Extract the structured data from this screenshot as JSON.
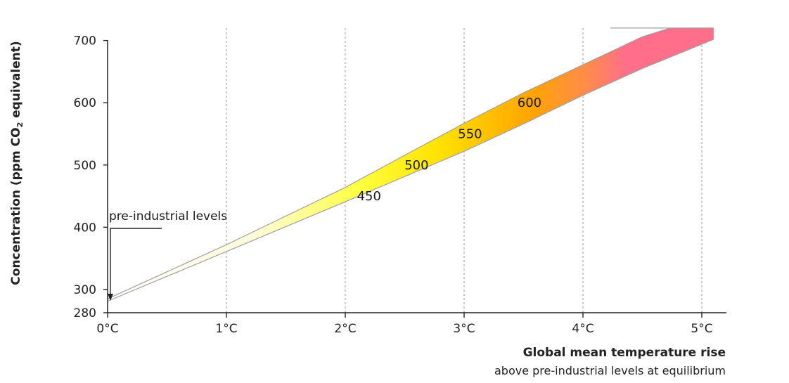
{
  "chart_data": {
    "type": "area",
    "title": "",
    "xlabel": "Global mean temperature rise",
    "xlabel_sub": "above pre-industrial levels at equilibrium",
    "ylabel": "Concentration (ppm CO",
    "ylabel_sub": "2",
    "ylabel_end": " equivalent)",
    "x_ticks": [
      {
        "value": 0,
        "label": "0°C"
      },
      {
        "value": 1,
        "label": "1°C"
      },
      {
        "value": 2,
        "label": "2°C"
      },
      {
        "value": 3,
        "label": "3°C"
      },
      {
        "value": 4,
        "label": "4°C"
      },
      {
        "value": 5,
        "label": "5°C"
      }
    ],
    "y_ticks": [
      280,
      300,
      400,
      500,
      600,
      700
    ],
    "xlim": [
      0,
      5.2
    ],
    "ylim": [
      280,
      720
    ],
    "grid": "vertical dashed lines at each degree",
    "band": {
      "upper": [
        [
          0,
          292
        ],
        [
          1,
          372
        ],
        [
          2,
          464
        ],
        [
          2.6,
          526
        ],
        [
          3,
          567
        ],
        [
          3.5,
          616
        ],
        [
          4,
          661
        ],
        [
          4.5,
          706
        ],
        [
          5.1,
          742
        ]
      ],
      "lower": [
        [
          0,
          290
        ],
        [
          1,
          361
        ],
        [
          2,
          441
        ],
        [
          3,
          522
        ],
        [
          3.5,
          566
        ],
        [
          4,
          612
        ],
        [
          4.5,
          655
        ],
        [
          5,
          694
        ],
        [
          5.1,
          702
        ]
      ],
      "cutoff_y": 720
    },
    "band_labels": [
      {
        "label": "450",
        "x": 2.2,
        "y": 450
      },
      {
        "label": "500",
        "x": 2.6,
        "y": 500
      },
      {
        "label": "550",
        "x": 3.05,
        "y": 550
      },
      {
        "label": "600",
        "x": 3.55,
        "y": 600
      }
    ],
    "annotation": {
      "text": "pre-industrial levels",
      "target": [
        0,
        280
      ]
    },
    "colors": {
      "band_gradient": [
        "#fffbe6",
        "#ffff33",
        "#ffd400",
        "#ffaa00",
        "#ff8540",
        "#ff6f8a"
      ],
      "band_edge": "#a0a0a0",
      "axis": "#222222",
      "grid": "#9a9a9a"
    }
  }
}
